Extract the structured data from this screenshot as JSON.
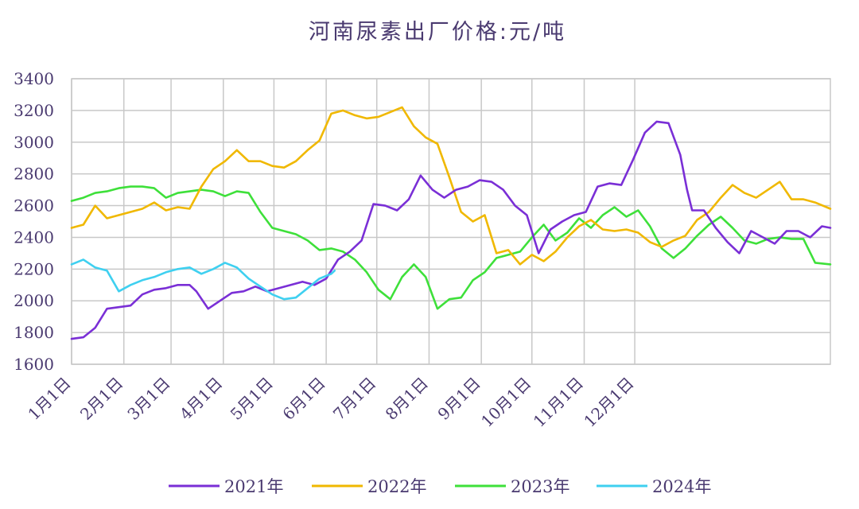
{
  "chart_data": {
    "type": "line",
    "title": "河南尿素出厂价格:元/吨",
    "xlabel": "",
    "ylabel": "",
    "ylim": [
      1600,
      3400
    ],
    "yticks": [
      "1600",
      "1800",
      "2000",
      "2200",
      "2400",
      "2600",
      "2800",
      "3000",
      "3200",
      "3400"
    ],
    "xticks": [
      "1月1日",
      "2月1日",
      "3月1日",
      "4月1日",
      "5月1日",
      "6月1日",
      "7月1日",
      "8月1日",
      "9月1日",
      "10月1日",
      "11月1日",
      "12月1日"
    ],
    "grid": true,
    "legend_position": "bottom",
    "colors": {
      "2021年": "#7a2fd6",
      "2022年": "#f0b800",
      "2023年": "#3ee03a",
      "2024年": "#3fd0f0",
      "grid": "#c8c8c8",
      "text": "#4a3a70"
    },
    "series": [
      {
        "name": "2021年",
        "points": [
          [
            1,
            1760
          ],
          [
            8,
            1770
          ],
          [
            15,
            1830
          ],
          [
            22,
            1950
          ],
          [
            29,
            1960
          ],
          [
            36,
            1970
          ],
          [
            43,
            2040
          ],
          [
            50,
            2070
          ],
          [
            57,
            2080
          ],
          [
            64,
            2100
          ],
          [
            71,
            2100
          ],
          [
            75,
            2060
          ],
          [
            82,
            1950
          ],
          [
            89,
            2000
          ],
          [
            96,
            2050
          ],
          [
            103,
            2060
          ],
          [
            110,
            2090
          ],
          [
            117,
            2060
          ],
          [
            124,
            2080
          ],
          [
            131,
            2100
          ],
          [
            138,
            2120
          ],
          [
            145,
            2100
          ],
          [
            152,
            2140
          ],
          [
            159,
            2260
          ],
          [
            166,
            2310
          ],
          [
            173,
            2380
          ],
          [
            180,
            2610
          ],
          [
            187,
            2600
          ],
          [
            194,
            2570
          ],
          [
            201,
            2640
          ],
          [
            208,
            2790
          ],
          [
            215,
            2700
          ],
          [
            222,
            2650
          ],
          [
            229,
            2700
          ],
          [
            236,
            2720
          ],
          [
            243,
            2760
          ],
          [
            250,
            2750
          ],
          [
            257,
            2700
          ],
          [
            264,
            2600
          ],
          [
            271,
            2540
          ],
          [
            278,
            2300
          ],
          [
            285,
            2450
          ],
          [
            292,
            2500
          ],
          [
            299,
            2540
          ],
          [
            306,
            2560
          ],
          [
            313,
            2720
          ],
          [
            320,
            2740
          ],
          [
            327,
            2730
          ],
          [
            334,
            2890
          ],
          [
            341,
            3060
          ],
          [
            348,
            3130
          ],
          [
            355,
            3120
          ],
          [
            362,
            2920
          ],
          [
            366,
            2700
          ],
          [
            369,
            2570
          ],
          [
            376,
            2570
          ],
          [
            383,
            2460
          ],
          [
            390,
            2370
          ],
          [
            397,
            2300
          ],
          [
            404,
            2440
          ],
          [
            411,
            2400
          ],
          [
            418,
            2360
          ],
          [
            425,
            2440
          ],
          [
            432,
            2440
          ],
          [
            439,
            2400
          ],
          [
            446,
            2470
          ],
          [
            451,
            2460
          ]
        ]
      },
      {
        "name": "2022年",
        "points": [
          [
            1,
            2460
          ],
          [
            8,
            2480
          ],
          [
            15,
            2600
          ],
          [
            22,
            2520
          ],
          [
            29,
            2540
          ],
          [
            36,
            2560
          ],
          [
            43,
            2580
          ],
          [
            50,
            2620
          ],
          [
            57,
            2570
          ],
          [
            64,
            2590
          ],
          [
            71,
            2580
          ],
          [
            78,
            2720
          ],
          [
            85,
            2830
          ],
          [
            92,
            2880
          ],
          [
            99,
            2950
          ],
          [
            106,
            2880
          ],
          [
            113,
            2880
          ],
          [
            120,
            2850
          ],
          [
            127,
            2840
          ],
          [
            134,
            2880
          ],
          [
            141,
            2950
          ],
          [
            148,
            3010
          ],
          [
            155,
            3180
          ],
          [
            162,
            3200
          ],
          [
            169,
            3170
          ],
          [
            176,
            3150
          ],
          [
            183,
            3160
          ],
          [
            190,
            3190
          ],
          [
            197,
            3220
          ],
          [
            204,
            3100
          ],
          [
            211,
            3030
          ],
          [
            218,
            2990
          ],
          [
            225,
            2780
          ],
          [
            232,
            2560
          ],
          [
            239,
            2500
          ],
          [
            246,
            2540
          ],
          [
            253,
            2300
          ],
          [
            260,
            2320
          ],
          [
            267,
            2230
          ],
          [
            274,
            2290
          ],
          [
            281,
            2250
          ],
          [
            288,
            2310
          ],
          [
            295,
            2400
          ],
          [
            302,
            2470
          ],
          [
            309,
            2510
          ],
          [
            316,
            2450
          ],
          [
            323,
            2440
          ],
          [
            330,
            2450
          ],
          [
            337,
            2430
          ],
          [
            344,
            2370
          ],
          [
            351,
            2340
          ],
          [
            358,
            2380
          ],
          [
            365,
            2410
          ],
          [
            372,
            2510
          ],
          [
            379,
            2560
          ],
          [
            386,
            2650
          ],
          [
            393,
            2730
          ],
          [
            400,
            2680
          ],
          [
            407,
            2650
          ],
          [
            414,
            2700
          ],
          [
            421,
            2750
          ],
          [
            428,
            2640
          ],
          [
            435,
            2640
          ],
          [
            442,
            2620
          ],
          [
            451,
            2580
          ]
        ]
      },
      {
        "name": "2023年",
        "points": [
          [
            1,
            2630
          ],
          [
            8,
            2650
          ],
          [
            15,
            2680
          ],
          [
            22,
            2690
          ],
          [
            29,
            2710
          ],
          [
            36,
            2720
          ],
          [
            43,
            2720
          ],
          [
            50,
            2710
          ],
          [
            57,
            2650
          ],
          [
            64,
            2680
          ],
          [
            71,
            2690
          ],
          [
            78,
            2700
          ],
          [
            85,
            2690
          ],
          [
            92,
            2660
          ],
          [
            99,
            2690
          ],
          [
            106,
            2680
          ],
          [
            113,
            2560
          ],
          [
            120,
            2460
          ],
          [
            127,
            2440
          ],
          [
            134,
            2420
          ],
          [
            141,
            2380
          ],
          [
            148,
            2320
          ],
          [
            155,
            2330
          ],
          [
            162,
            2310
          ],
          [
            169,
            2260
          ],
          [
            176,
            2180
          ],
          [
            183,
            2070
          ],
          [
            190,
            2010
          ],
          [
            197,
            2150
          ],
          [
            204,
            2230
          ],
          [
            211,
            2150
          ],
          [
            218,
            1950
          ],
          [
            225,
            2010
          ],
          [
            232,
            2020
          ],
          [
            239,
            2130
          ],
          [
            246,
            2180
          ],
          [
            253,
            2270
          ],
          [
            260,
            2290
          ],
          [
            267,
            2310
          ],
          [
            274,
            2400
          ],
          [
            281,
            2480
          ],
          [
            288,
            2380
          ],
          [
            295,
            2430
          ],
          [
            302,
            2520
          ],
          [
            309,
            2460
          ],
          [
            316,
            2540
          ],
          [
            323,
            2590
          ],
          [
            330,
            2530
          ],
          [
            337,
            2570
          ],
          [
            344,
            2470
          ],
          [
            351,
            2330
          ],
          [
            358,
            2270
          ],
          [
            365,
            2330
          ],
          [
            372,
            2410
          ],
          [
            379,
            2480
          ],
          [
            386,
            2530
          ],
          [
            393,
            2460
          ],
          [
            400,
            2380
          ],
          [
            407,
            2360
          ],
          [
            414,
            2390
          ],
          [
            421,
            2400
          ],
          [
            428,
            2390
          ],
          [
            435,
            2390
          ],
          [
            442,
            2240
          ],
          [
            451,
            2230
          ]
        ]
      },
      {
        "name": "2024年",
        "points": [
          [
            1,
            2230
          ],
          [
            8,
            2260
          ],
          [
            15,
            2210
          ],
          [
            22,
            2190
          ],
          [
            29,
            2060
          ],
          [
            36,
            2100
          ],
          [
            43,
            2130
          ],
          [
            50,
            2150
          ],
          [
            57,
            2180
          ],
          [
            64,
            2200
          ],
          [
            71,
            2210
          ],
          [
            78,
            2170
          ],
          [
            85,
            2200
          ],
          [
            92,
            2240
          ],
          [
            99,
            2210
          ],
          [
            106,
            2140
          ],
          [
            113,
            2090
          ],
          [
            120,
            2040
          ],
          [
            127,
            2010
          ],
          [
            134,
            2020
          ],
          [
            141,
            2080
          ],
          [
            148,
            2140
          ],
          [
            155,
            2170
          ],
          [
            157,
            2190
          ]
        ]
      }
    ]
  }
}
